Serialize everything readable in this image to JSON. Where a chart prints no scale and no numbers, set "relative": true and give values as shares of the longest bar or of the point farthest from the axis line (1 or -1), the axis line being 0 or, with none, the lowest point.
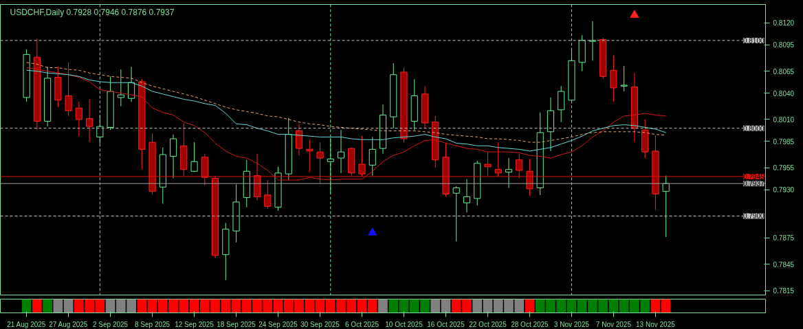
{
  "chart_data": [
    {
      "type": "candlestick",
      "title": "USDCHF,Daily  0.7928 0.7946 0.7876 0.7937",
      "categories": [
        null,
        null,
        null,
        null,
        null,
        null,
        null,
        null,
        null,
        null,
        null,
        null,
        null,
        null,
        null,
        null,
        null,
        null,
        null,
        null,
        null,
        null,
        null,
        null,
        null,
        null,
        null,
        null,
        null,
        null,
        null,
        null,
        null,
        null,
        null,
        null,
        null,
        null,
        null,
        null,
        null,
        null,
        null,
        null,
        null,
        null,
        null,
        null,
        null,
        null,
        null,
        null,
        null,
        null,
        null,
        null,
        null,
        null,
        null,
        null,
        null,
        null
      ],
      "ohlc": [
        [
          0.8035,
          0.809,
          0.803,
          0.8084
        ],
        [
          0.8081,
          0.8102,
          0.7998,
          0.8008
        ],
        [
          0.8008,
          0.807,
          0.8002,
          0.8057
        ],
        [
          0.8058,
          0.807,
          0.8024,
          0.8032
        ],
        [
          0.8037,
          0.8075,
          0.8014,
          0.802
        ],
        [
          0.8023,
          0.803,
          0.7991,
          0.801
        ],
        [
          0.8011,
          0.8033,
          0.7984,
          0.8002
        ],
        [
          0.799,
          0.8015,
          0.7982,
          0.8002
        ],
        [
          0.8001,
          0.8059,
          0.7998,
          0.8042
        ],
        [
          0.8035,
          0.8067,
          0.8025,
          0.8038
        ],
        [
          0.8034,
          0.807,
          0.803,
          0.8052
        ],
        [
          0.8053,
          0.8056,
          0.7953,
          0.7976
        ],
        [
          0.7984,
          0.7994,
          0.7925,
          0.7928
        ],
        [
          0.7933,
          0.7978,
          0.7914,
          0.797
        ],
        [
          0.7968,
          0.7993,
          0.7943,
          0.7988
        ],
        [
          0.798,
          0.8006,
          0.7946,
          0.7953
        ],
        [
          0.7951,
          0.7984,
          0.795,
          0.7962
        ],
        [
          0.7967,
          0.7971,
          0.7935,
          0.7944
        ],
        [
          0.7943,
          0.7946,
          0.7852,
          0.7855
        ],
        [
          0.7856,
          0.7892,
          0.7827,
          0.7885
        ],
        [
          0.7883,
          0.7936,
          0.787,
          0.7916
        ],
        [
          0.7921,
          0.7964,
          0.791,
          0.7951
        ],
        [
          0.7946,
          0.7971,
          0.7918,
          0.7922
        ],
        [
          0.7924,
          0.7941,
          0.7908,
          0.7911
        ],
        [
          0.791,
          0.7956,
          0.7906,
          0.7949
        ],
        [
          0.7948,
          0.8012,
          0.7941,
          0.7993
        ],
        [
          0.7997,
          0.8005,
          0.7969,
          0.7977
        ],
        [
          0.7976,
          0.7987,
          0.795,
          0.7974
        ],
        [
          0.7973,
          0.7984,
          0.7937,
          0.7966
        ],
        [
          0.7962,
          0.7989,
          0.7926,
          0.7965
        ],
        [
          0.7966,
          0.7998,
          0.7949,
          0.7973
        ],
        [
          0.7977,
          0.7978,
          0.7946,
          0.7949
        ],
        [
          0.7959,
          0.7991,
          0.7945,
          0.7948
        ],
        [
          0.7958,
          0.799,
          0.7946,
          0.7976
        ],
        [
          0.7977,
          0.8027,
          0.7971,
          0.8015
        ],
        [
          0.8013,
          0.8074,
          0.8,
          0.8061
        ],
        [
          0.8064,
          0.8069,
          0.7984,
          0.7988
        ],
        [
          0.8008,
          0.8056,
          0.7998,
          0.8037
        ],
        [
          0.8039,
          0.8048,
          0.8,
          0.8006
        ],
        [
          0.8007,
          0.8014,
          0.7955,
          0.7964
        ],
        [
          0.7967,
          0.7983,
          0.7922,
          0.7925
        ],
        [
          0.7926,
          0.7934,
          0.7871,
          0.7932
        ],
        [
          0.7915,
          0.7942,
          0.7904,
          0.7922
        ],
        [
          0.792,
          0.7963,
          0.7912,
          0.796
        ],
        [
          0.7959,
          0.7973,
          0.7946,
          0.7956
        ],
        [
          0.7953,
          0.7984,
          0.7945,
          0.7949
        ],
        [
          0.795,
          0.7966,
          0.7932,
          0.7953
        ],
        [
          0.7964,
          0.7971,
          0.7943,
          0.7952
        ],
        [
          0.7951,
          0.7965,
          0.7923,
          0.7931
        ],
        [
          0.7932,
          0.8018,
          0.7924,
          0.7995
        ],
        [
          0.7996,
          0.8035,
          0.7974,
          0.802
        ],
        [
          0.8021,
          0.8048,
          0.8007,
          0.8042
        ],
        [
          0.8032,
          0.809,
          0.8031,
          0.8077
        ],
        [
          0.8075,
          0.8106,
          0.8065,
          0.81
        ],
        [
          0.8099,
          0.8122,
          0.8077,
          0.81
        ],
        [
          0.8101,
          0.8103,
          0.8056,
          0.8059
        ],
        [
          0.8066,
          0.8083,
          0.803,
          0.8046
        ],
        [
          0.8048,
          0.8071,
          0.8042,
          0.8049
        ],
        [
          0.8047,
          0.8063,
          0.7984,
          0.8
        ],
        [
          0.7998,
          0.801,
          0.7966,
          0.7973
        ],
        [
          0.7974,
          0.7992,
          0.7907,
          0.7925
        ],
        [
          0.7928,
          0.7946,
          0.7876,
          0.7937
        ]
      ],
      "series": [
        {
          "type": "line",
          "color": "#d01818",
          "line_style": "solid",
          "values": [
            0.8069,
            0.8067,
            0.8065,
            0.8063,
            0.8061,
            0.8058,
            0.8053,
            0.8044,
            0.8042,
            0.804,
            0.8038,
            0.8036,
            0.8023,
            0.8018,
            0.8015,
            0.8007,
            0.8003,
            0.7995,
            0.7983,
            0.7974,
            0.7968,
            0.7966,
            0.796,
            0.7952,
            0.7941,
            0.7941,
            0.7941,
            0.7944,
            0.7942,
            0.7941,
            0.7942,
            0.7942,
            0.7942,
            0.7951,
            0.7962,
            0.7969,
            0.7973,
            0.798,
            0.7986,
            0.7987,
            0.7983,
            0.798,
            0.7977,
            0.7976,
            0.7973,
            0.7973,
            0.7973,
            0.7972,
            0.7969,
            0.7968,
            0.7966,
            0.797,
            0.7973,
            0.798,
            0.799,
            0.7997,
            0.8007,
            0.8014,
            0.8015,
            0.8017,
            0.8015,
            0.8014
          ]
        },
        {
          "type": "line",
          "color": "#66d8d8",
          "line_style": "solid",
          "values": [
            0.8066,
            0.8065,
            0.8063,
            0.8062,
            0.8061,
            0.8059,
            0.8055,
            0.8053,
            0.8052,
            0.8052,
            0.8052,
            0.8048,
            0.8042,
            0.8039,
            0.8036,
            0.8033,
            0.8031,
            0.8028,
            0.8026,
            0.8017,
            0.8005,
            0.8004,
            0.8,
            0.7997,
            0.7993,
            0.7993,
            0.7992,
            0.7991,
            0.799,
            0.799,
            0.799,
            0.7988,
            0.7987,
            0.7987,
            0.7987,
            0.7989,
            0.799,
            0.7991,
            0.7993,
            0.799,
            0.7988,
            0.7983,
            0.7982,
            0.798,
            0.798,
            0.7978,
            0.7977,
            0.7976,
            0.7974,
            0.7976,
            0.7978,
            0.7982,
            0.7986,
            0.7991,
            0.7997,
            0.8,
            0.8003,
            0.8004,
            0.8003,
            0.8001,
            0.7999,
            0.7995
          ]
        },
        {
          "type": "line",
          "color": "#e8a070",
          "line_style": "dashed",
          "values": [
            0.8075,
            0.8073,
            0.8069,
            0.8069,
            0.8067,
            0.8066,
            0.8063,
            0.8061,
            0.8059,
            0.8058,
            0.8057,
            0.8052,
            0.8048,
            0.8045,
            0.8042,
            0.8039,
            0.8036,
            0.8032,
            0.8028,
            0.8024,
            0.8021,
            0.8019,
            0.8017,
            0.8014,
            0.8013,
            0.801,
            0.8007,
            0.8005,
            0.8004,
            0.8002,
            0.8001,
            0.8,
            0.7999,
            0.7998,
            0.7997,
            0.7997,
            0.7997,
            0.7997,
            0.7996,
            0.7995,
            0.7993,
            0.7992,
            0.7991,
            0.799,
            0.7988,
            0.7988,
            0.7987,
            0.7986,
            0.7984,
            0.7984,
            0.7986,
            0.7988,
            0.799,
            0.7993,
            0.7995,
            0.7996,
            0.7996,
            0.7996,
            0.7996,
            0.7995,
            0.7993,
            0.7992
          ]
        },
        {
          "type": "scatter",
          "color": "#1010ff",
          "marker": "triangle",
          "values": [
            null,
            null,
            null,
            null,
            null,
            null,
            null,
            null,
            null,
            null,
            null,
            null,
            null,
            null,
            null,
            null,
            null,
            null,
            null,
            null,
            null,
            null,
            null,
            null,
            null,
            null,
            null,
            null,
            null,
            null,
            null,
            null,
            null,
            0.7881,
            null,
            null,
            null,
            null,
            null,
            null,
            null,
            null,
            null,
            null,
            null,
            null,
            null,
            null,
            null,
            null,
            null,
            null,
            null,
            null,
            null,
            null,
            null,
            null,
            null,
            null,
            null,
            null
          ]
        },
        {
          "type": "scatter",
          "color": "#ff2020",
          "marker": "triangle",
          "values": [
            null,
            null,
            null,
            null,
            null,
            null,
            null,
            null,
            null,
            null,
            null,
            null,
            null,
            null,
            null,
            null,
            null,
            null,
            null,
            null,
            null,
            null,
            null,
            null,
            null,
            null,
            null,
            null,
            null,
            null,
            null,
            null,
            null,
            null,
            null,
            null,
            null,
            null,
            null,
            null,
            null,
            null,
            null,
            null,
            null,
            null,
            null,
            null,
            null,
            null,
            null,
            null,
            null,
            null,
            null,
            null,
            null,
            null,
            0.8129,
            null,
            null,
            null
          ]
        }
      ],
      "ylim": [
        0.781,
        0.8141
      ],
      "grid": "x",
      "yticks": [
        {
          "value": 0.812,
          "label": "0.8120"
        },
        {
          "value": 0.8095,
          "label": "0.8095"
        },
        {
          "value": 0.8065,
          "label": "0.8065"
        },
        {
          "value": 0.804,
          "label": "0.8040"
        },
        {
          "value": 0.801,
          "label": "0.8010"
        },
        {
          "value": 0.7985,
          "label": "0.7985"
        },
        {
          "value": 0.7955,
          "label": "0.7955"
        },
        {
          "value": 0.793,
          "label": "0.7930"
        },
        {
          "value": 0.7875,
          "label": "0.7875"
        },
        {
          "value": 0.7845,
          "label": "0.7845"
        },
        {
          "value": 0.7815,
          "label": "0.7815"
        }
      ],
      "tick_labels": "y",
      "ref_lines": [
        {
          "axis": "y",
          "value": 0.81,
          "label": "0.8100",
          "color": "#c0c0c0",
          "line_style": "dashed"
        },
        {
          "axis": "y",
          "value": 0.8,
          "label": "0.8000",
          "color": "#c0c0c0",
          "line_style": "dashed"
        },
        {
          "axis": "y",
          "value": 0.79,
          "label": "0.7900",
          "color": "#c0c0c0",
          "line_style": "dashed"
        },
        {
          "axis": "y",
          "value": 0.7945,
          "label": "0.7945",
          "color": "#e01010",
          "line_style": "solid"
        },
        {
          "axis": "y",
          "value": 0.7937,
          "label": "0.7937",
          "color": "#a0a0a0",
          "line_style": "solid"
        }
      ]
    },
    {
      "type": "bar",
      "relative": true,
      "tick_labels": "x",
      "categories": [
        "21 Aug 2025",
        null,
        null,
        null,
        "27 Aug 2025",
        null,
        null,
        null,
        "2 Sep 2025",
        null,
        null,
        null,
        "8 Sep 2025",
        null,
        null,
        null,
        "12 Sep 2025",
        null,
        null,
        null,
        "18 Sep 2025",
        null,
        null,
        null,
        "24 Sep 2025",
        null,
        null,
        null,
        "30 Sep 2025",
        null,
        null,
        null,
        "6 Oct 2025",
        null,
        null,
        null,
        "10 Oct 2025",
        null,
        null,
        null,
        "16 Oct 2025",
        null,
        null,
        null,
        "22 Oct 2025",
        null,
        null,
        null,
        "28 Oct 2025",
        null,
        null,
        null,
        "3 Nov 2025",
        null,
        null,
        null,
        "7 Nov 2025",
        null,
        null,
        null,
        "13 Nov 2025",
        null
      ],
      "values": [
        1,
        1,
        1,
        1,
        1,
        1,
        1,
        1,
        1,
        1,
        1,
        1,
        1,
        1,
        1,
        1,
        1,
        1,
        1,
        1,
        1,
        1,
        1,
        1,
        1,
        1,
        1,
        1,
        1,
        1,
        1,
        1,
        1,
        1,
        1,
        1,
        1,
        1,
        1,
        1,
        1,
        1,
        1,
        1,
        1,
        1,
        1,
        1,
        1,
        1,
        1,
        1,
        1,
        1,
        1,
        1,
        1,
        1,
        1,
        1,
        1,
        1
      ],
      "colors": [
        "#008000",
        "#ff0000",
        "#008000",
        "#808080",
        "#808080",
        "#ff0000",
        "#ff0000",
        "#ff0000",
        "#808080",
        "#808080",
        "#808080",
        "#ff0000",
        "#ff0000",
        "#ff0000",
        "#ff0000",
        "#ff0000",
        "#ff0000",
        "#ff0000",
        "#ff0000",
        "#ff0000",
        "#ff0000",
        "#ff0000",
        "#ff0000",
        "#ff0000",
        "#ff0000",
        "#ff0000",
        "#ff0000",
        "#ff0000",
        "#ff0000",
        "#ff0000",
        "#ff0000",
        "#ff0000",
        "#ff0000",
        "#ff0000",
        "#808080",
        "#008000",
        "#008000",
        "#008000",
        "#008000",
        "#808080",
        "#808080",
        "#ff0000",
        "#ff0000",
        "#808080",
        "#808080",
        "#808080",
        "#808080",
        "#808080",
        "#ff0000",
        "#008000",
        "#008000",
        "#008000",
        "#008000",
        "#008000",
        "#008000",
        "#008000",
        "#008000",
        "#008000",
        "#008000",
        "#008000",
        "#ff0000",
        "#ff0000"
      ]
    }
  ]
}
